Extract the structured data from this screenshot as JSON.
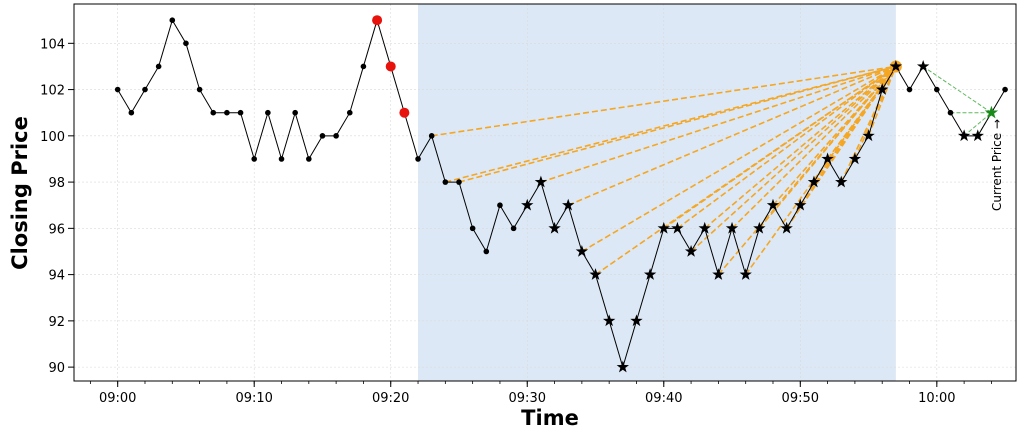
{
  "chart_data": {
    "type": "line",
    "xlabel": "Time",
    "ylabel": "Closing Price",
    "ylim": [
      89.4,
      105.7
    ],
    "x_range_minutes": [
      -3.2,
      65.8
    ],
    "x_ticks": [
      {
        "m": 0,
        "label": "09:00"
      },
      {
        "m": 10,
        "label": "09:10"
      },
      {
        "m": 20,
        "label": "09:20"
      },
      {
        "m": 30,
        "label": "09:30"
      },
      {
        "m": 40,
        "label": "09:40"
      },
      {
        "m": 50,
        "label": "09:50"
      },
      {
        "m": 60,
        "label": "10:00"
      }
    ],
    "y_ticks": [
      90,
      92,
      94,
      96,
      98,
      100,
      102,
      104
    ],
    "grid": true,
    "highlight_span": {
      "start_m": 22,
      "end_m": 57,
      "color": "#dce8f5"
    },
    "series": [
      {
        "minutes": [
          0,
          1,
          2,
          3,
          4,
          5,
          6,
          7,
          8,
          9,
          10,
          11,
          12,
          13,
          14,
          15,
          16,
          17,
          18,
          19,
          20,
          21,
          22,
          23,
          24,
          25,
          26,
          27,
          28,
          29,
          30,
          31,
          32,
          33,
          34,
          35,
          36,
          37,
          38,
          39,
          40,
          41,
          42,
          43,
          44,
          45,
          46,
          47,
          48,
          49,
          50,
          51,
          52,
          53,
          54,
          55,
          56,
          57,
          58,
          59,
          60,
          61,
          62,
          63,
          64,
          65
        ],
        "values": [
          102,
          101,
          102,
          103,
          105,
          104,
          102,
          101,
          101,
          101,
          99,
          101,
          99,
          101,
          99,
          100,
          100,
          101,
          103,
          105,
          103,
          101,
          99,
          100,
          98,
          98,
          96,
          95,
          97,
          96,
          97,
          98,
          96,
          97,
          95,
          94,
          92,
          90,
          92,
          94,
          96,
          96,
          95,
          96,
          94,
          96,
          94,
          96,
          97,
          96,
          97,
          98,
          99,
          98,
          99,
          100,
          102,
          103,
          102,
          103,
          102,
          101,
          100,
          100,
          101,
          102
        ]
      }
    ],
    "red_points_minutes": [
      19,
      20,
      21
    ],
    "black_star_minutes": [
      30,
      31,
      32,
      33,
      34,
      35,
      36,
      37,
      38,
      39,
      40,
      41,
      42,
      43,
      44,
      45,
      46,
      47,
      48,
      49,
      50,
      51,
      52,
      53,
      54,
      55,
      56,
      57,
      59,
      62,
      63
    ],
    "orange_target": {
      "m": 57,
      "v": 103
    },
    "orange_source_minutes": [
      23,
      24,
      25,
      31,
      33,
      34,
      35,
      40,
      41,
      42,
      43,
      44,
      45,
      46,
      47,
      48,
      49,
      50,
      51,
      52,
      53,
      54,
      55,
      56
    ],
    "green_target": {
      "m": 64,
      "v": 101
    },
    "green_source_minutes": [
      59,
      61,
      62,
      63
    ],
    "annotation": "Current Price →"
  }
}
